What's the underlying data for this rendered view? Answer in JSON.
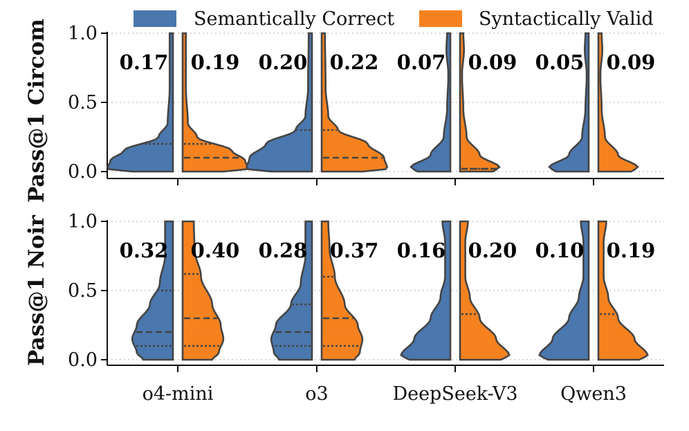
{
  "legend": {
    "semantic": "Semantically Correct",
    "syntactic": "Syntactically Valid"
  },
  "colors": {
    "semantic": "#4a77ad",
    "syntactic": "#f5821f"
  },
  "chart_data": [
    {
      "type": "violin",
      "ylabel": "Pass@1 Circom",
      "ylim": [
        0,
        1
      ],
      "yticks": [
        "0.0",
        "0.5",
        "1.0"
      ],
      "grid": true,
      "categories": [
        "o4-mini",
        "o3",
        "DeepSeek-V3",
        "Qwen3"
      ],
      "series": [
        {
          "name": "Semantically Correct",
          "means": [
            "0.17",
            "0.20",
            "0.07",
            "0.05"
          ],
          "quartiles": [
            [
              0.0,
              0.0,
              0.2
            ],
            [
              0.0,
              0.0,
              0.3
            ],
            [
              0.0,
              0.0,
              0.0
            ],
            [
              0.0,
              0.0,
              0.0
            ]
          ]
        },
        {
          "name": "Syntactically Valid",
          "means": [
            "0.19",
            "0.22",
            "0.09",
            "0.09"
          ],
          "quartiles": [
            [
              0.0,
              0.1,
              0.2
            ],
            [
              0.0,
              0.1,
              0.3
            ],
            [
              0.0,
              0.02,
              0.02
            ],
            [
              0.0,
              0.0,
              0.0
            ]
          ]
        }
      ]
    },
    {
      "type": "violin",
      "ylabel": "Pass@1 Noir",
      "ylim": [
        0,
        1
      ],
      "yticks": [
        "0.0",
        "0.5",
        "1.0"
      ],
      "grid": true,
      "categories": [
        "o4-mini",
        "o3",
        "DeepSeek-V3",
        "Qwen3"
      ],
      "series": [
        {
          "name": "Semantically Correct",
          "means": [
            "0.32",
            "0.28",
            "0.16",
            "0.10"
          ],
          "quartiles": [
            [
              0.1,
              0.2,
              0.5
            ],
            [
              0.1,
              0.2,
              0.4
            ],
            [
              0.0,
              0.0,
              0.0
            ],
            [
              0.0,
              0.0,
              0.0
            ]
          ]
        },
        {
          "name": "Syntactically Valid",
          "means": [
            "0.40",
            "0.37",
            "0.20",
            "0.19"
          ],
          "quartiles": [
            [
              0.1,
              0.3,
              0.62
            ],
            [
              0.1,
              0.3,
              0.6
            ],
            [
              0.0,
              0.0,
              0.33
            ],
            [
              0.0,
              0.0,
              0.33
            ]
          ]
        }
      ]
    }
  ]
}
